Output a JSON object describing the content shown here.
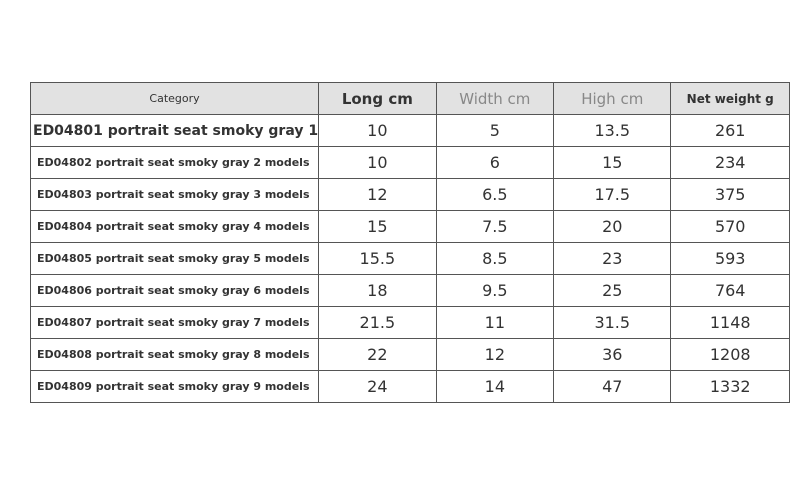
{
  "table": {
    "headers": [
      "Category",
      "Long cm",
      "Width cm",
      "High cm",
      "Net weight g"
    ],
    "rows": [
      [
        "ED04801 portrait seat smoky gray 1",
        "10",
        "5",
        "13.5",
        "261"
      ],
      [
        "ED04802 portrait seat smoky gray 2 models",
        "10",
        "6",
        "15",
        "234"
      ],
      [
        "ED04803 portrait seat smoky gray 3 models",
        "12",
        "6.5",
        "17.5",
        "375"
      ],
      [
        "ED04804 portrait seat smoky gray 4 models",
        "15",
        "7.5",
        "20",
        "570"
      ],
      [
        "ED04805 portrait seat smoky gray 5 models",
        "15.5",
        "8.5",
        "23",
        "593"
      ],
      [
        "ED04806 portrait seat smoky gray 6 models",
        "18",
        "9.5",
        "25",
        "764"
      ],
      [
        "ED04807 portrait seat smoky gray 7 models",
        "21.5",
        "11",
        "31.5",
        "1148"
      ],
      [
        "ED04808 portrait seat smoky gray 8 models",
        "22",
        "12",
        "36",
        "1208"
      ],
      [
        "ED04809 portrait seat smoky gray 9 models",
        "24",
        "14",
        "47",
        "1332"
      ]
    ]
  }
}
